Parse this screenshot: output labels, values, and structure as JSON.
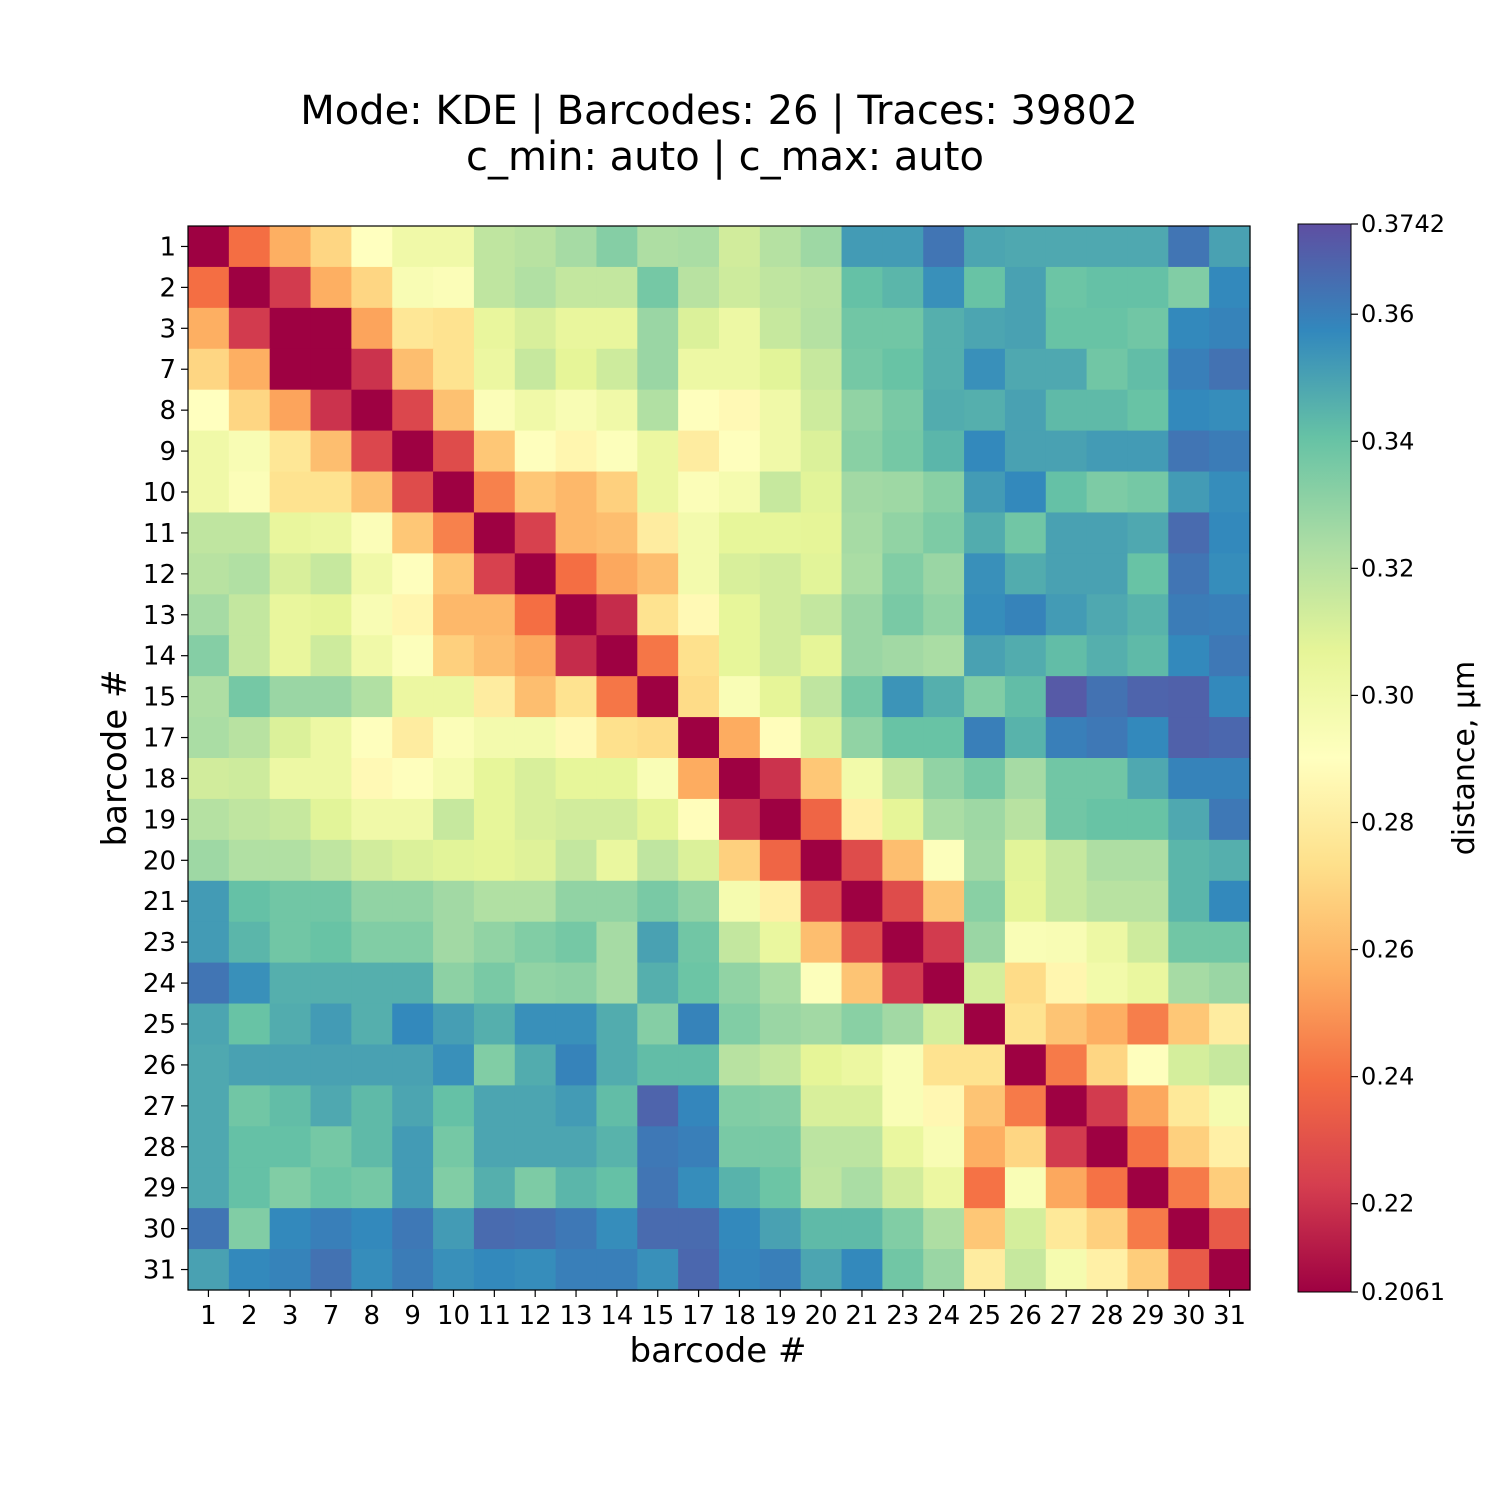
{
  "chart_data": {
    "type": "heatmap",
    "title_line1": "Mode: KDE | Barcodes: 26 | Traces: 39802",
    "title_line2": "c_min: auto | c_max: auto",
    "xlabel": "barcode #",
    "ylabel": "barcode #",
    "colorbar_label": "distance, µm",
    "colormap": "Spectral",
    "vmin": 0.2061,
    "vmax": 0.3742,
    "colorbar_ticks": [
      "0.2061",
      "0.22",
      "0.24",
      "0.26",
      "0.28",
      "0.30",
      "0.32",
      "0.34",
      "0.36",
      "0.3742"
    ],
    "categories": [
      "1",
      "2",
      "3",
      "7",
      "8",
      "9",
      "10",
      "11",
      "12",
      "13",
      "14",
      "15",
      "17",
      "18",
      "19",
      "20",
      "21",
      "23",
      "24",
      "25",
      "26",
      "27",
      "28",
      "29",
      "30",
      "31"
    ],
    "values": [
      [
        0.206,
        0.24,
        0.257,
        0.27,
        0.29,
        0.3,
        0.3,
        0.318,
        0.32,
        0.325,
        0.333,
        0.323,
        0.324,
        0.313,
        0.321,
        0.327,
        0.352,
        0.352,
        0.363,
        0.349,
        0.348,
        0.348,
        0.348,
        0.348,
        0.363,
        0.35
      ],
      [
        0.24,
        0.206,
        0.222,
        0.257,
        0.27,
        0.295,
        0.293,
        0.318,
        0.322,
        0.317,
        0.317,
        0.337,
        0.32,
        0.314,
        0.318,
        0.32,
        0.341,
        0.344,
        0.355,
        0.34,
        0.35,
        0.339,
        0.341,
        0.341,
        0.334,
        0.357
      ],
      [
        0.257,
        0.222,
        0.206,
        0.206,
        0.254,
        0.277,
        0.275,
        0.305,
        0.311,
        0.305,
        0.305,
        0.328,
        0.31,
        0.302,
        0.316,
        0.321,
        0.338,
        0.338,
        0.346,
        0.349,
        0.35,
        0.34,
        0.34,
        0.338,
        0.357,
        0.359
      ],
      [
        0.27,
        0.257,
        0.206,
        0.206,
        0.22,
        0.262,
        0.275,
        0.303,
        0.316,
        0.307,
        0.314,
        0.328,
        0.302,
        0.302,
        0.308,
        0.316,
        0.337,
        0.34,
        0.346,
        0.355,
        0.348,
        0.348,
        0.338,
        0.342,
        0.36,
        0.364
      ],
      [
        0.29,
        0.27,
        0.254,
        0.22,
        0.206,
        0.226,
        0.263,
        0.293,
        0.3,
        0.295,
        0.3,
        0.322,
        0.291,
        0.287,
        0.3,
        0.314,
        0.33,
        0.336,
        0.347,
        0.346,
        0.35,
        0.343,
        0.343,
        0.34,
        0.357,
        0.356
      ],
      [
        0.3,
        0.295,
        0.277,
        0.262,
        0.226,
        0.206,
        0.228,
        0.265,
        0.291,
        0.285,
        0.292,
        0.303,
        0.28,
        0.291,
        0.3,
        0.31,
        0.332,
        0.337,
        0.344,
        0.357,
        0.35,
        0.35,
        0.352,
        0.352,
        0.363,
        0.361
      ],
      [
        0.3,
        0.293,
        0.275,
        0.275,
        0.263,
        0.228,
        0.206,
        0.245,
        0.265,
        0.26,
        0.268,
        0.303,
        0.293,
        0.297,
        0.316,
        0.308,
        0.326,
        0.327,
        0.332,
        0.352,
        0.357,
        0.341,
        0.335,
        0.337,
        0.352,
        0.356
      ],
      [
        0.318,
        0.318,
        0.305,
        0.303,
        0.293,
        0.265,
        0.245,
        0.206,
        0.224,
        0.26,
        0.262,
        0.28,
        0.298,
        0.306,
        0.306,
        0.307,
        0.325,
        0.33,
        0.335,
        0.347,
        0.338,
        0.35,
        0.35,
        0.348,
        0.366,
        0.357
      ],
      [
        0.32,
        0.322,
        0.311,
        0.316,
        0.3,
        0.291,
        0.265,
        0.224,
        0.206,
        0.24,
        0.255,
        0.262,
        0.298,
        0.311,
        0.313,
        0.308,
        0.324,
        0.334,
        0.328,
        0.355,
        0.347,
        0.35,
        0.35,
        0.34,
        0.363,
        0.356
      ],
      [
        0.325,
        0.317,
        0.305,
        0.307,
        0.295,
        0.285,
        0.26,
        0.26,
        0.24,
        0.206,
        0.218,
        0.275,
        0.287,
        0.306,
        0.313,
        0.317,
        0.328,
        0.336,
        0.33,
        0.356,
        0.359,
        0.352,
        0.348,
        0.345,
        0.361,
        0.36
      ],
      [
        0.333,
        0.317,
        0.305,
        0.314,
        0.3,
        0.292,
        0.268,
        0.262,
        0.255,
        0.218,
        0.206,
        0.242,
        0.274,
        0.306,
        0.313,
        0.307,
        0.328,
        0.326,
        0.324,
        0.35,
        0.347,
        0.342,
        0.346,
        0.343,
        0.357,
        0.362
      ],
      [
        0.323,
        0.337,
        0.328,
        0.328,
        0.322,
        0.303,
        0.303,
        0.28,
        0.262,
        0.275,
        0.242,
        0.206,
        0.272,
        0.294,
        0.307,
        0.318,
        0.337,
        0.354,
        0.346,
        0.334,
        0.342,
        0.371,
        0.364,
        0.368,
        0.369,
        0.357
      ],
      [
        0.324,
        0.32,
        0.31,
        0.302,
        0.291,
        0.28,
        0.293,
        0.298,
        0.298,
        0.287,
        0.274,
        0.272,
        0.206,
        0.256,
        0.289,
        0.31,
        0.33,
        0.34,
        0.34,
        0.36,
        0.345,
        0.36,
        0.362,
        0.357,
        0.369,
        0.367
      ],
      [
        0.313,
        0.314,
        0.302,
        0.302,
        0.287,
        0.291,
        0.297,
        0.306,
        0.311,
        0.306,
        0.306,
        0.294,
        0.256,
        0.206,
        0.22,
        0.265,
        0.299,
        0.317,
        0.33,
        0.337,
        0.325,
        0.338,
        0.338,
        0.348,
        0.359,
        0.359
      ],
      [
        0.321,
        0.318,
        0.316,
        0.308,
        0.3,
        0.3,
        0.316,
        0.306,
        0.311,
        0.313,
        0.313,
        0.307,
        0.289,
        0.22,
        0.206,
        0.237,
        0.282,
        0.307,
        0.324,
        0.327,
        0.32,
        0.338,
        0.34,
        0.34,
        0.348,
        0.362
      ],
      [
        0.327,
        0.322,
        0.322,
        0.318,
        0.313,
        0.31,
        0.308,
        0.307,
        0.309,
        0.317,
        0.304,
        0.318,
        0.31,
        0.268,
        0.237,
        0.206,
        0.228,
        0.262,
        0.292,
        0.326,
        0.308,
        0.316,
        0.323,
        0.323,
        0.344,
        0.346
      ],
      [
        0.352,
        0.341,
        0.338,
        0.338,
        0.33,
        0.33,
        0.326,
        0.322,
        0.322,
        0.33,
        0.33,
        0.336,
        0.33,
        0.297,
        0.282,
        0.228,
        0.206,
        0.228,
        0.264,
        0.332,
        0.307,
        0.316,
        0.32,
        0.32,
        0.344,
        0.357
      ],
      [
        0.352,
        0.344,
        0.338,
        0.34,
        0.334,
        0.334,
        0.326,
        0.33,
        0.334,
        0.337,
        0.325,
        0.35,
        0.338,
        0.317,
        0.304,
        0.262,
        0.228,
        0.206,
        0.222,
        0.328,
        0.294,
        0.295,
        0.302,
        0.314,
        0.338,
        0.338
      ],
      [
        0.363,
        0.355,
        0.346,
        0.346,
        0.346,
        0.346,
        0.331,
        0.336,
        0.33,
        0.331,
        0.325,
        0.346,
        0.339,
        0.33,
        0.324,
        0.292,
        0.264,
        0.222,
        0.206,
        0.312,
        0.272,
        0.285,
        0.299,
        0.304,
        0.325,
        0.328
      ],
      [
        0.349,
        0.34,
        0.347,
        0.352,
        0.346,
        0.357,
        0.351,
        0.346,
        0.355,
        0.355,
        0.347,
        0.333,
        0.359,
        0.334,
        0.328,
        0.326,
        0.332,
        0.326,
        0.312,
        0.206,
        0.275,
        0.264,
        0.257,
        0.244,
        0.265,
        0.28
      ],
      [
        0.348,
        0.35,
        0.35,
        0.35,
        0.35,
        0.35,
        0.355,
        0.334,
        0.347,
        0.359,
        0.347,
        0.342,
        0.342,
        0.32,
        0.317,
        0.307,
        0.303,
        0.294,
        0.275,
        0.275,
        0.206,
        0.243,
        0.27,
        0.291,
        0.312,
        0.316
      ],
      [
        0.348,
        0.338,
        0.342,
        0.348,
        0.343,
        0.349,
        0.341,
        0.349,
        0.349,
        0.352,
        0.342,
        0.368,
        0.358,
        0.334,
        0.333,
        0.311,
        0.311,
        0.294,
        0.286,
        0.264,
        0.243,
        0.206,
        0.222,
        0.255,
        0.278,
        0.297
      ],
      [
        0.348,
        0.341,
        0.341,
        0.337,
        0.343,
        0.352,
        0.337,
        0.349,
        0.349,
        0.349,
        0.345,
        0.362,
        0.36,
        0.336,
        0.336,
        0.319,
        0.319,
        0.304,
        0.295,
        0.257,
        0.27,
        0.222,
        0.206,
        0.241,
        0.268,
        0.282
      ],
      [
        0.348,
        0.341,
        0.334,
        0.339,
        0.337,
        0.352,
        0.334,
        0.346,
        0.335,
        0.344,
        0.341,
        0.363,
        0.356,
        0.345,
        0.339,
        0.318,
        0.324,
        0.313,
        0.303,
        0.241,
        0.294,
        0.255,
        0.241,
        0.206,
        0.243,
        0.267
      ],
      [
        0.363,
        0.334,
        0.357,
        0.36,
        0.357,
        0.362,
        0.352,
        0.366,
        0.365,
        0.362,
        0.356,
        0.366,
        0.366,
        0.357,
        0.35,
        0.343,
        0.343,
        0.334,
        0.323,
        0.265,
        0.312,
        0.278,
        0.268,
        0.243,
        0.206,
        0.233
      ],
      [
        0.35,
        0.357,
        0.359,
        0.364,
        0.356,
        0.361,
        0.355,
        0.357,
        0.356,
        0.36,
        0.36,
        0.355,
        0.367,
        0.358,
        0.36,
        0.349,
        0.357,
        0.338,
        0.328,
        0.28,
        0.316,
        0.297,
        0.282,
        0.267,
        0.233,
        0.206
      ]
    ]
  }
}
